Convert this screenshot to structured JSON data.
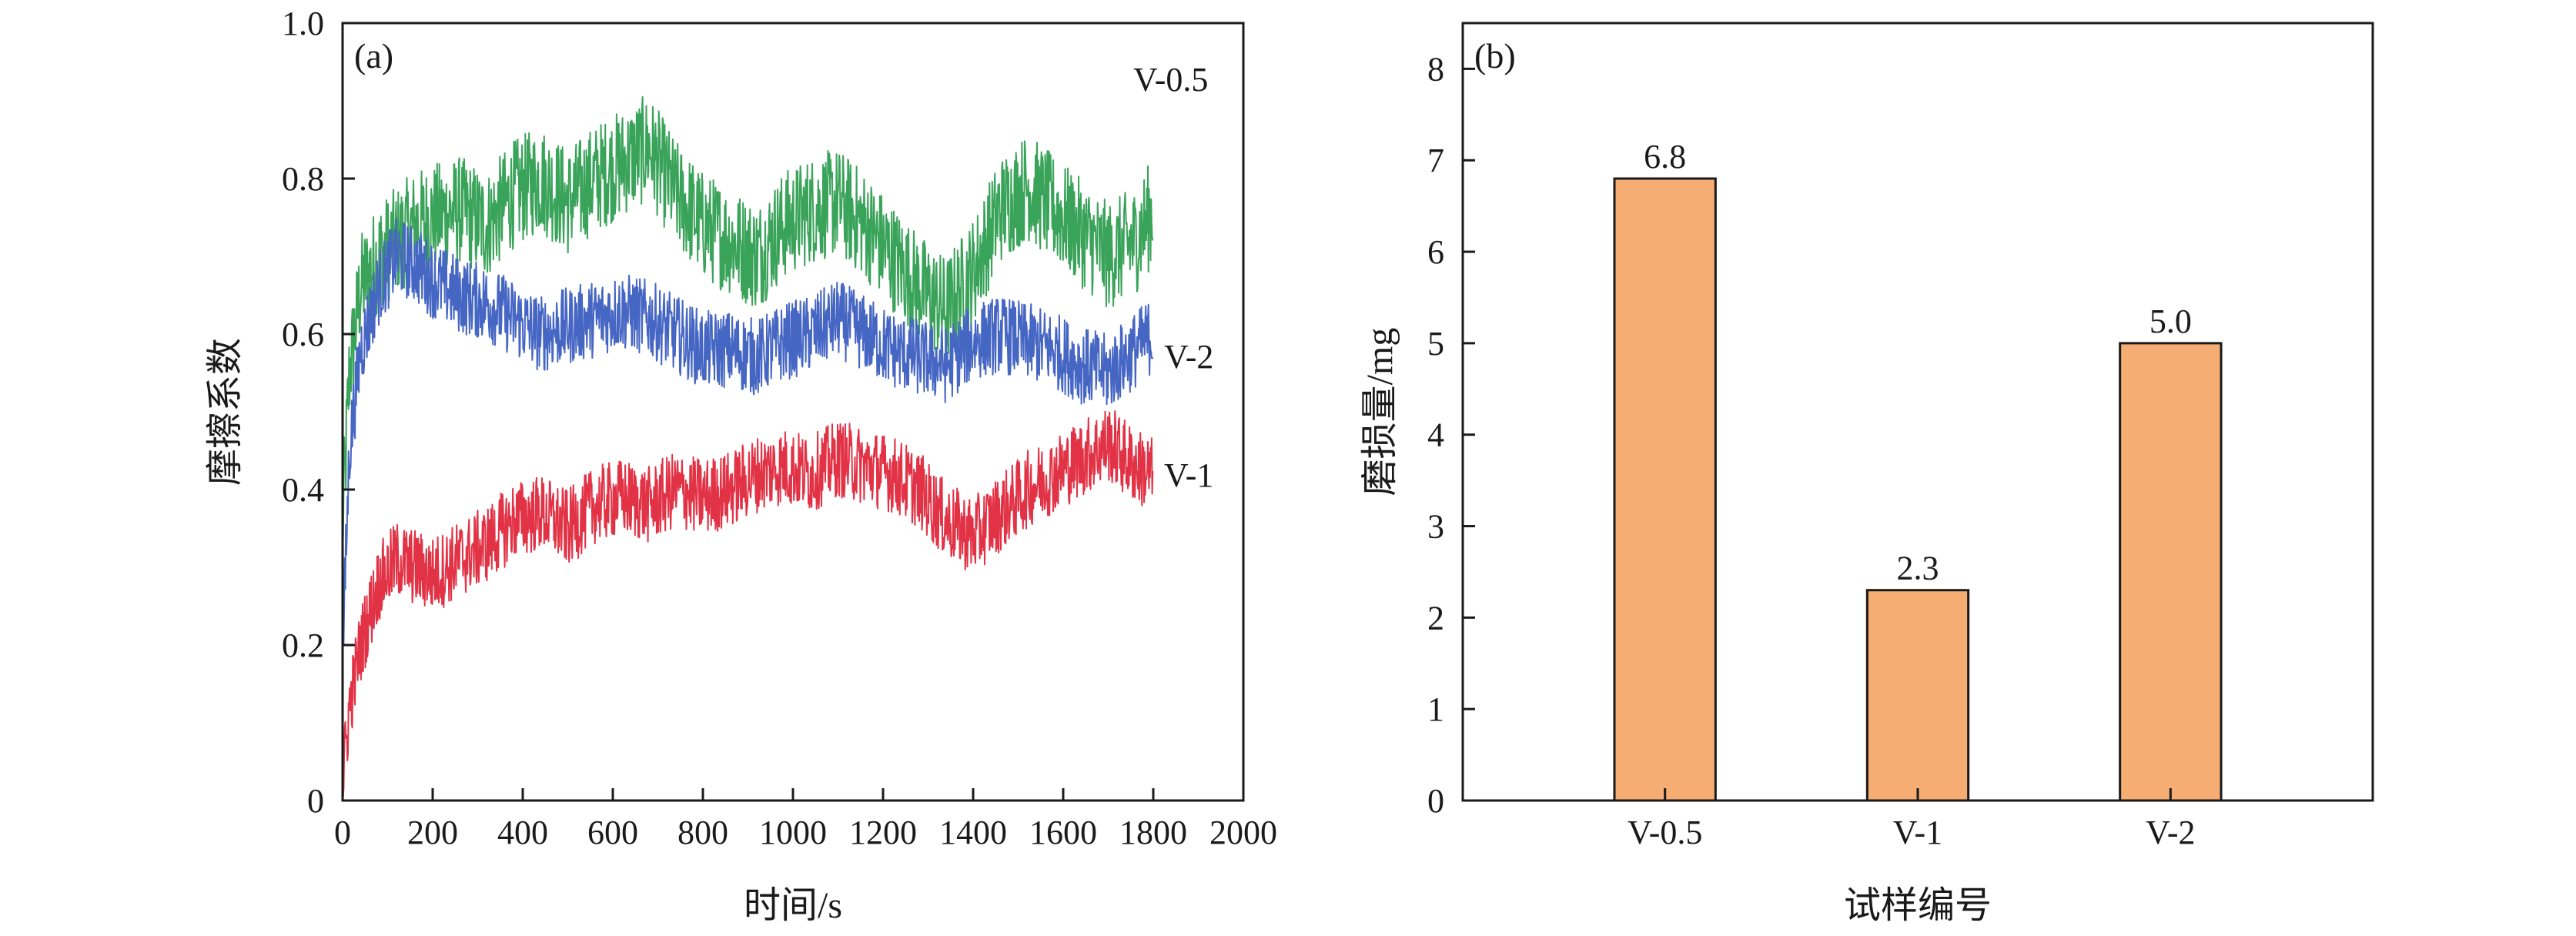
{
  "chart_data": [
    {
      "type": "line",
      "panel_label": "(a)",
      "xlabel": "时间/s",
      "ylabel": "摩擦系数",
      "xlim": [
        0,
        2000
      ],
      "ylim": [
        0,
        1.0
      ],
      "x_ticks": [
        0,
        200,
        400,
        600,
        800,
        1000,
        1200,
        1400,
        1600,
        1800,
        2000
      ],
      "x_tick_labels": [
        "0",
        "200",
        "400",
        "600",
        "800",
        "1000",
        "1200",
        "1400",
        "1600",
        "1800",
        "2000"
      ],
      "y_ticks": [
        0,
        0.2,
        0.4,
        0.6,
        0.8,
        1.0
      ],
      "y_tick_labels": [
        "0",
        "0.2",
        "0.4",
        "0.6",
        "0.8",
        "1.0"
      ],
      "series": [
        {
          "name": "V-0.5",
          "color": "#3aa35a",
          "x": [
            0,
            15,
            40,
            80,
            120,
            160,
            200,
            260,
            320,
            380,
            440,
            500,
            560,
            620,
            680,
            740,
            800,
            860,
            920,
            980,
            1040,
            1100,
            1160,
            1220,
            1280,
            1340,
            1400,
            1460,
            1520,
            1580,
            1640,
            1700,
            1760,
            1800
          ],
          "values": [
            0.35,
            0.55,
            0.66,
            0.7,
            0.72,
            0.74,
            0.75,
            0.76,
            0.74,
            0.78,
            0.8,
            0.77,
            0.8,
            0.82,
            0.84,
            0.78,
            0.74,
            0.72,
            0.7,
            0.74,
            0.76,
            0.77,
            0.74,
            0.7,
            0.66,
            0.63,
            0.68,
            0.76,
            0.79,
            0.76,
            0.73,
            0.7,
            0.72,
            0.76
          ],
          "noise": 0.07
        },
        {
          "name": "V-2",
          "color": "#4666c4",
          "x": [
            0,
            15,
            40,
            80,
            120,
            160,
            200,
            260,
            320,
            380,
            440,
            500,
            560,
            620,
            680,
            740,
            800,
            860,
            920,
            980,
            1040,
            1100,
            1160,
            1220,
            1280,
            1340,
            1400,
            1460,
            1520,
            1580,
            1640,
            1700,
            1760,
            1800
          ],
          "values": [
            0.18,
            0.45,
            0.58,
            0.66,
            0.7,
            0.69,
            0.67,
            0.65,
            0.64,
            0.62,
            0.6,
            0.61,
            0.62,
            0.63,
            0.62,
            0.6,
            0.58,
            0.58,
            0.57,
            0.59,
            0.6,
            0.62,
            0.6,
            0.58,
            0.57,
            0.56,
            0.59,
            0.6,
            0.59,
            0.58,
            0.56,
            0.55,
            0.58,
            0.6
          ],
          "noise": 0.05
        },
        {
          "name": "V-1",
          "color": "#e23346",
          "x": [
            0,
            15,
            40,
            80,
            120,
            160,
            200,
            260,
            320,
            380,
            440,
            500,
            560,
            620,
            680,
            740,
            800,
            860,
            920,
            980,
            1040,
            1100,
            1160,
            1220,
            1280,
            1340,
            1400,
            1460,
            1520,
            1580,
            1640,
            1700,
            1760,
            1800
          ],
          "values": [
            0.02,
            0.12,
            0.2,
            0.28,
            0.31,
            0.3,
            0.29,
            0.31,
            0.33,
            0.36,
            0.37,
            0.35,
            0.38,
            0.39,
            0.38,
            0.4,
            0.39,
            0.4,
            0.42,
            0.43,
            0.42,
            0.44,
            0.43,
            0.42,
            0.4,
            0.36,
            0.34,
            0.37,
            0.4,
            0.42,
            0.44,
            0.46,
            0.43,
            0.42
          ],
          "noise": 0.05
        }
      ]
    },
    {
      "type": "bar",
      "panel_label": "(b)",
      "xlabel": "试样编号",
      "ylabel": "磨损量/mg",
      "ylim": [
        0,
        8.5
      ],
      "y_ticks": [
        0,
        1,
        2,
        3,
        4,
        5,
        6,
        7,
        8
      ],
      "y_tick_labels": [
        "0",
        "1",
        "2",
        "3",
        "4",
        "5",
        "6",
        "7",
        "8"
      ],
      "categories": [
        "V-0.5",
        "V-1",
        "V-2"
      ],
      "values": [
        6.8,
        2.3,
        5.0
      ],
      "value_labels": [
        "6.8",
        "2.3",
        "5.0"
      ],
      "bar_color": "#f6ad74",
      "bar_edge_color": "#1a1a1a"
    }
  ]
}
